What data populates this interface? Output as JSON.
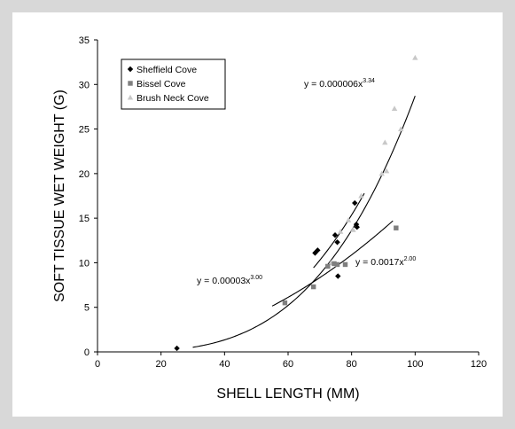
{
  "chart_data": {
    "type": "scatter",
    "title": "",
    "xlabel": "SHELL LENGTH (MM)",
    "ylabel": "SOFT TISSUE WET WEIGHT (G)",
    "xlim": [
      0,
      120
    ],
    "ylim": [
      0,
      35
    ],
    "xticks": [
      0,
      20,
      40,
      60,
      80,
      100,
      120
    ],
    "yticks": [
      0,
      5,
      10,
      15,
      20,
      25,
      30,
      35
    ],
    "grid": false,
    "legend_position": "top-left",
    "series": [
      {
        "name": "Sheffield Cove",
        "marker": "diamond",
        "color": "#000000",
        "points": [
          [
            25,
            0.4
          ],
          [
            68.5,
            11.1
          ],
          [
            69.3,
            11.4
          ],
          [
            74.8,
            13.1
          ],
          [
            75.5,
            12.3
          ],
          [
            75.7,
            8.5
          ],
          [
            81,
            16.7
          ],
          [
            81.5,
            14.3
          ],
          [
            81.7,
            14.0
          ]
        ]
      },
      {
        "name": "Bissel Cove",
        "marker": "square",
        "color": "#7f7f7f",
        "points": [
          [
            59,
            5.5
          ],
          [
            68,
            7.3
          ],
          [
            72.5,
            9.6
          ],
          [
            74.5,
            9.9
          ],
          [
            75.5,
            9.8
          ],
          [
            78,
            9.8
          ],
          [
            94,
            13.9
          ]
        ]
      },
      {
        "name": "Brush Neck Cove",
        "marker": "triangle",
        "color": "#c8c8c8",
        "points": [
          [
            73.5,
            10.0
          ],
          [
            76.5,
            13.5
          ],
          [
            79,
            14.8
          ],
          [
            80.5,
            13.7
          ],
          [
            83,
            17.5
          ],
          [
            89.5,
            20.0
          ],
          [
            90.5,
            23.5
          ],
          [
            91,
            20.3
          ],
          [
            93.5,
            27.3
          ],
          [
            95.5,
            25.0
          ],
          [
            100,
            33.0
          ]
        ]
      }
    ],
    "fits": [
      {
        "equation_base": "y = 0.000006x",
        "exponent": "3.34",
        "domain": [
          30,
          100
        ]
      },
      {
        "equation_base": "y = 0.00003x",
        "exponent": "3.00",
        "domain": [
          68,
          84
        ]
      },
      {
        "equation_base": "y = 0.0017x",
        "exponent": "2.00",
        "domain": [
          55,
          93
        ]
      }
    ]
  }
}
